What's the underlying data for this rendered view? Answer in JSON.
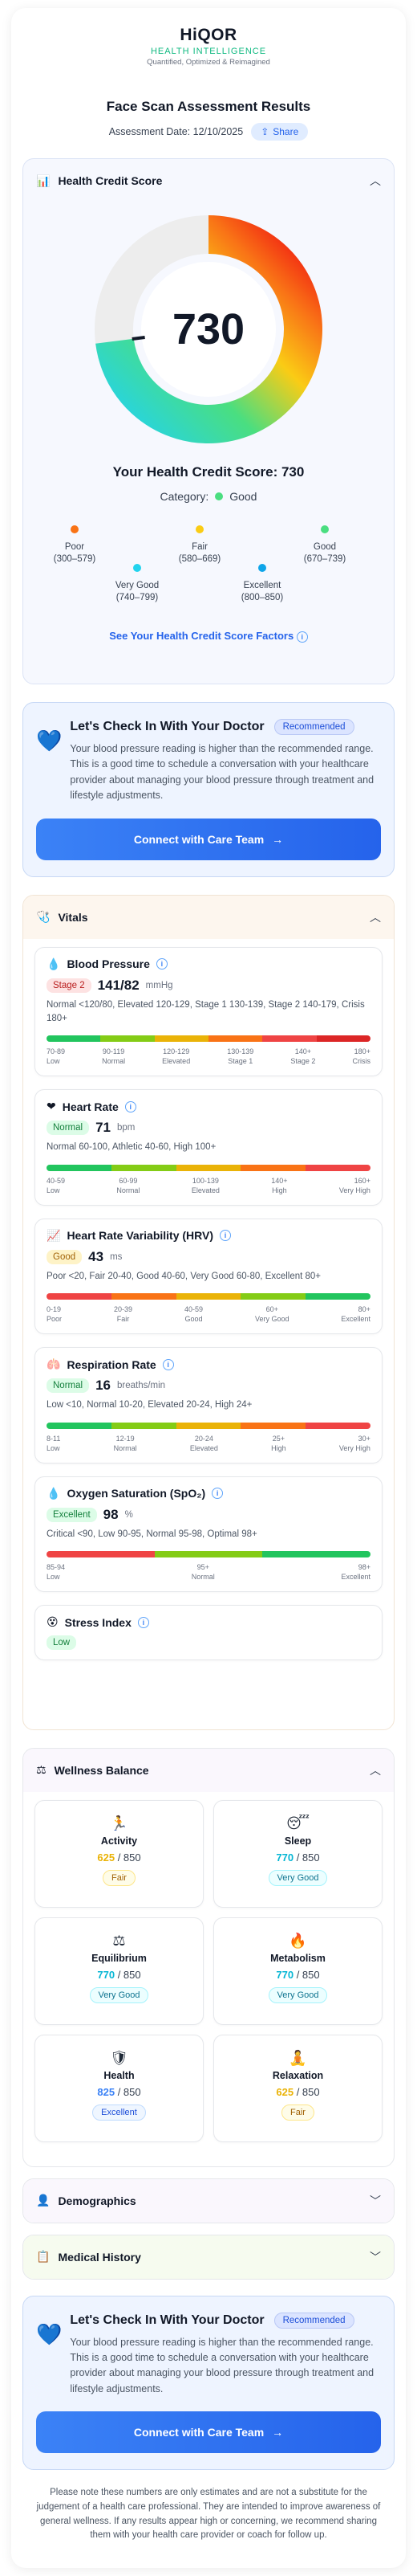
{
  "brand": {
    "logo": "HiQOR",
    "subtitle": "HEALTH INTELLIGENCE",
    "tagline": "Quantified, Optimized & Reimagined"
  },
  "header": {
    "title": "Face Scan Assessment Results",
    "date_label": "Assessment Date: 12/10/2025",
    "share_label": "Share"
  },
  "health_credit": {
    "section_title": "Health Credit Score",
    "score": "730",
    "score_line": "Your Health Credit Score: 730",
    "category_label": "Category:",
    "category_value": "Good",
    "category_color": "#4ade80",
    "gauge_fraction": 0.73,
    "legend": [
      {
        "name": "Poor",
        "range": "(300–579)",
        "color": "#f97316"
      },
      {
        "name": "Fair",
        "range": "(580–669)",
        "color": "#facc15"
      },
      {
        "name": "Good",
        "range": "(670–739)",
        "color": "#4ade80"
      },
      {
        "name": "Very Good",
        "range": "(740–799)",
        "color": "#22d3ee"
      },
      {
        "name": "Excellent",
        "range": "(800–850)",
        "color": "#0ea5e9"
      }
    ],
    "factors_link": "See Your Health Credit Score Factors"
  },
  "doctor_check": {
    "title": "Let's Check In With Your Doctor",
    "badge": "Recommended",
    "text": "Your blood pressure reading is higher than the recommended range. This is a good time to schedule a conversation with your healthcare provider about managing your blood pressure through treatment and lifestyle adjustments.",
    "button": "Connect with Care Team"
  },
  "vitals": {
    "section_title": "Vitals",
    "items": [
      {
        "name": "Blood Pressure",
        "icon": "💧",
        "badge": "Stage 2",
        "badge_bg": "#fde2e2",
        "badge_fg": "#b91c1c",
        "value": "141/82",
        "unit": "mmHg",
        "range": "Normal <120/80, Elevated 120-129, Stage 1 130-139, Stage 2 140-179, Crisis 180+",
        "bar": [
          "#22c55e",
          "#84cc16",
          "#eab308",
          "#f97316",
          "#ef4444",
          "#dc2626"
        ],
        "scale": [
          {
            "v": "70-89",
            "l": "Low"
          },
          {
            "v": "90-119",
            "l": "Normal"
          },
          {
            "v": "120-129",
            "l": "Elevated"
          },
          {
            "v": "130-139",
            "l": "Stage 1"
          },
          {
            "v": "140+",
            "l": "Stage 2"
          },
          {
            "v": "180+",
            "l": "Crisis"
          }
        ]
      },
      {
        "name": "Heart Rate",
        "icon": "❤",
        "badge": "Normal",
        "badge_bg": "#dcfce7",
        "badge_fg": "#15803d",
        "value": "71",
        "unit": "bpm",
        "range": "Normal 60-100, Athletic 40-60, High 100+",
        "bar": [
          "#22c55e",
          "#84cc16",
          "#eab308",
          "#f97316",
          "#ef4444"
        ],
        "scale": [
          {
            "v": "40-59",
            "l": "Low"
          },
          {
            "v": "60-99",
            "l": "Normal"
          },
          {
            "v": "100-139",
            "l": "Elevated"
          },
          {
            "v": "140+",
            "l": "High"
          },
          {
            "v": "160+",
            "l": "Very High"
          }
        ]
      },
      {
        "name": "Heart Rate Variability (HRV)",
        "icon": "📈",
        "badge": "Good",
        "badge_bg": "#fef3c7",
        "badge_fg": "#a16207",
        "value": "43",
        "unit": "ms",
        "range": "Poor <20, Fair 20-40, Good 40-60, Very Good 60-80, Excellent 80+",
        "bar": [
          "#ef4444",
          "#f97316",
          "#eab308",
          "#84cc16",
          "#22c55e"
        ],
        "scale": [
          {
            "v": "0-19",
            "l": "Poor"
          },
          {
            "v": "20-39",
            "l": "Fair"
          },
          {
            "v": "40-59",
            "l": "Good"
          },
          {
            "v": "60+",
            "l": "Very Good"
          },
          {
            "v": "80+",
            "l": "Excellent"
          }
        ]
      },
      {
        "name": "Respiration Rate",
        "icon": "🫁",
        "badge": "Normal",
        "badge_bg": "#dcfce7",
        "badge_fg": "#15803d",
        "value": "16",
        "unit": "breaths/min",
        "range": "Low <10, Normal 10-20, Elevated 20-24, High 24+",
        "bar": [
          "#22c55e",
          "#84cc16",
          "#eab308",
          "#f97316",
          "#ef4444"
        ],
        "scale": [
          {
            "v": "8-11",
            "l": "Low"
          },
          {
            "v": "12-19",
            "l": "Normal"
          },
          {
            "v": "20-24",
            "l": "Elevated"
          },
          {
            "v": "25+",
            "l": "High"
          },
          {
            "v": "30+",
            "l": "Very High"
          }
        ]
      },
      {
        "name": "Oxygen Saturation (SpO₂)",
        "icon": "💧",
        "badge": "Excellent",
        "badge_bg": "#dcfce7",
        "badge_fg": "#15803d",
        "value": "98",
        "unit": "%",
        "range": "Critical <90, Low 90-95, Normal 95-98, Optimal 98+",
        "bar": [
          "#ef4444",
          "#84cc16",
          "#22c55e"
        ],
        "scale": [
          {
            "v": "85-94",
            "l": "Low"
          },
          {
            "v": "95+",
            "l": "Normal"
          },
          {
            "v": "98+",
            "l": "Excellent"
          }
        ]
      }
    ],
    "stress": {
      "name": "Stress Index",
      "icon": "😵",
      "badge": "Low"
    }
  },
  "wellness": {
    "section_title": "Wellness Balance",
    "items": [
      {
        "name": "Activity",
        "icon": "🏃",
        "score": "625",
        "max": "/ 850",
        "badge": "Fair",
        "color": "#eab308",
        "badge_bg": "#fefce8",
        "badge_border": "#fde68a",
        "badge_fg": "#a16207"
      },
      {
        "name": "Sleep",
        "icon": "😴",
        "score": "770",
        "max": "/ 850",
        "badge": "Very Good",
        "color": "#06b6d4",
        "badge_bg": "#ecfeff",
        "badge_border": "#a5f3fc",
        "badge_fg": "#0e7490"
      },
      {
        "name": "Equilibrium",
        "icon": "⚖",
        "score": "770",
        "max": "/ 850",
        "badge": "Very Good",
        "color": "#06b6d4",
        "badge_bg": "#ecfeff",
        "badge_border": "#a5f3fc",
        "badge_fg": "#0e7490"
      },
      {
        "name": "Metabolism",
        "icon": "🔥",
        "score": "770",
        "max": "/ 850",
        "badge": "Very Good",
        "color": "#06b6d4",
        "badge_bg": "#ecfeff",
        "badge_border": "#a5f3fc",
        "badge_fg": "#0e7490"
      },
      {
        "name": "Health",
        "icon": "🛡",
        "score": "825",
        "max": "/ 850",
        "badge": "Excellent",
        "color": "#3b82f6",
        "badge_bg": "#eff6ff",
        "badge_border": "#bfdbfe",
        "badge_fg": "#1d4ed8"
      },
      {
        "name": "Relaxation",
        "icon": "🧘",
        "score": "625",
        "max": "/ 850",
        "badge": "Fair",
        "color": "#eab308",
        "badge_bg": "#fefce8",
        "badge_border": "#fde68a",
        "badge_fg": "#a16207"
      }
    ]
  },
  "demographics": {
    "section_title": "Demographics"
  },
  "medical_history": {
    "section_title": "Medical History"
  },
  "disclaimer": "Please note these numbers are only estimates and are not a substitute for the judgement of a health care professional. They are intended to improve awareness of general wellness. If any results appear high or concerning, we recommend sharing them with your health care provider or coach for follow up."
}
